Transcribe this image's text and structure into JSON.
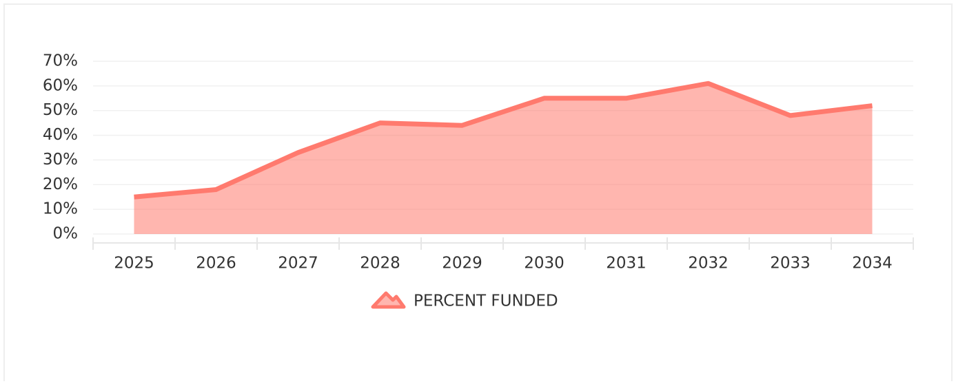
{
  "chart_data": {
    "type": "area",
    "categories": [
      "2025",
      "2026",
      "2027",
      "2028",
      "2029",
      "2030",
      "2031",
      "2032",
      "2033",
      "2034"
    ],
    "series": [
      {
        "name": "PERCENT FUNDED",
        "color": "#ff7a6e",
        "values": [
          15,
          18,
          33,
          45,
          44,
          55,
          55,
          61,
          48,
          52
        ]
      }
    ],
    "ylim": [
      0,
      70
    ],
    "yticks": [
      {
        "value": 0,
        "label": "0%"
      },
      {
        "value": 10,
        "label": "10%"
      },
      {
        "value": 20,
        "label": "20%"
      },
      {
        "value": 30,
        "label": "30%"
      },
      {
        "value": 40,
        "label": "40%"
      },
      {
        "value": 50,
        "label": "50%"
      },
      {
        "value": 60,
        "label": "60%"
      },
      {
        "value": 70,
        "label": "70%"
      }
    ],
    "grid": true,
    "legend": "bottom"
  }
}
